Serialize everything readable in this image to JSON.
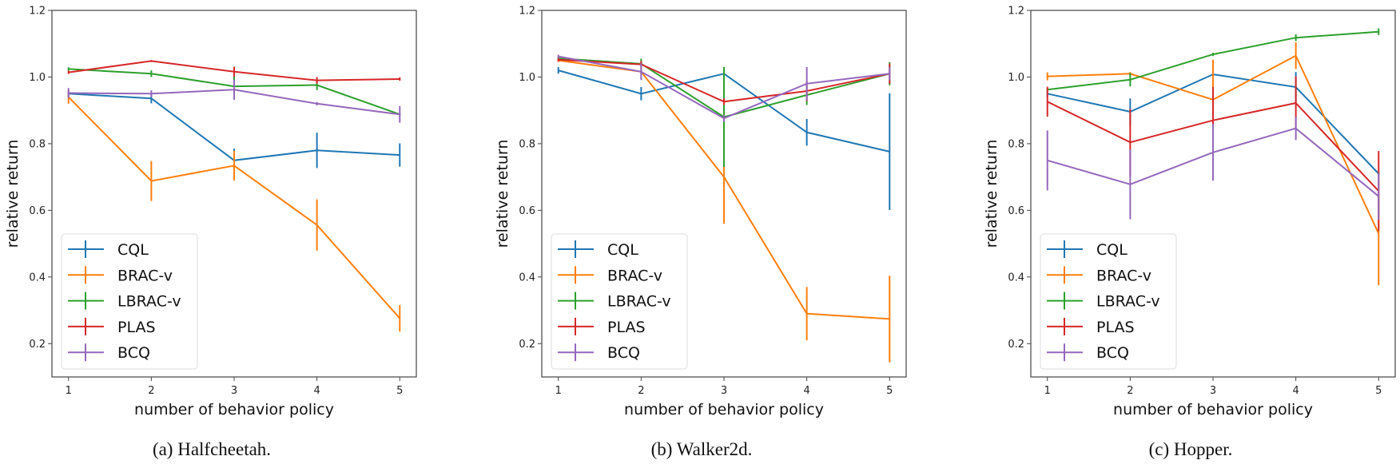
{
  "chart_data": [
    {
      "type": "line",
      "caption": "(a) Halfcheetah.",
      "xlabel": "number of behavior policy",
      "ylabel": "relative return",
      "x": [
        1,
        2,
        3,
        4,
        5
      ],
      "xlim": [
        0.8,
        5.2
      ],
      "ylim": [
        0.1,
        1.2
      ],
      "xticks": [
        "1",
        "2",
        "3",
        "4",
        "5"
      ],
      "yticks": [
        "0.2",
        "0.4",
        "0.6",
        "0.8",
        "1.0",
        "1.2"
      ],
      "grid": false,
      "legend_position": "lower-left",
      "series": [
        {
          "name": "CQL",
          "color": "#1f77b4",
          "values": [
            0.95,
            0.936,
            0.75,
            0.78,
            0.766
          ],
          "yerr": [
            0.01,
            0.015,
            0.035,
            0.053,
            0.035
          ]
        },
        {
          "name": "BRAC-v",
          "color": "#ff7f0e",
          "values": [
            0.94,
            0.688,
            0.734,
            0.556,
            0.276
          ],
          "yerr": [
            0.02,
            0.06,
            0.045,
            0.077,
            0.04
          ]
        },
        {
          "name": "LBRAC-v",
          "color": "#2ca02c",
          "values": [
            1.024,
            1.01,
            0.972,
            0.976,
            0.888
          ],
          "yerr": [
            0.005,
            0.01,
            0.04,
            0.015,
            0.005
          ]
        },
        {
          "name": "PLAS",
          "color": "#d62728",
          "values": [
            1.014,
            1.048,
            1.016,
            0.99,
            0.994
          ],
          "yerr": [
            0.005,
            0.003,
            0.015,
            0.01,
            0.005
          ]
        },
        {
          "name": "BCQ",
          "color": "#9467bd",
          "values": [
            0.952,
            0.95,
            0.962,
            0.92,
            0.888
          ],
          "yerr": [
            0.015,
            0.01,
            0.03,
            0.005,
            0.025
          ]
        }
      ]
    },
    {
      "type": "line",
      "caption": "(b) Walker2d.",
      "xlabel": "number of behavior policy",
      "ylabel": "relative return",
      "x": [
        1,
        2,
        3,
        4,
        5
      ],
      "xlim": [
        0.8,
        5.2
      ],
      "ylim": [
        0.1,
        1.2
      ],
      "xticks": [
        "1",
        "2",
        "3",
        "4",
        "5"
      ],
      "yticks": [
        "0.2",
        "0.4",
        "0.6",
        "0.8",
        "1.0",
        "1.2"
      ],
      "grid": false,
      "legend_position": "lower-left",
      "series": [
        {
          "name": "CQL",
          "color": "#1f77b4",
          "values": [
            1.02,
            0.95,
            1.01,
            0.834,
            0.776
          ],
          "yerr": [
            0.01,
            0.02,
            0.02,
            0.04,
            0.175
          ]
        },
        {
          "name": "BRAC-v",
          "color": "#ff7f0e",
          "values": [
            1.05,
            1.016,
            0.7,
            0.29,
            0.274
          ],
          "yerr": [
            0.005,
            0.01,
            0.14,
            0.08,
            0.13
          ]
        },
        {
          "name": "LBRAC-v",
          "color": "#2ca02c",
          "values": [
            1.056,
            1.04,
            0.88,
            0.946,
            1.01
          ],
          "yerr": [
            0.005,
            0.015,
            0.15,
            0.03,
            0.035
          ]
        },
        {
          "name": "PLAS",
          "color": "#d62728",
          "values": [
            1.052,
            1.038,
            0.926,
            0.958,
            1.01
          ],
          "yerr": [
            0.005,
            0.01,
            0.01,
            0.03,
            0.03
          ]
        },
        {
          "name": "BCQ",
          "color": "#9467bd",
          "values": [
            1.062,
            1.016,
            0.876,
            0.98,
            1.01
          ],
          "yerr": [
            0.005,
            0.025,
            0.01,
            0.05,
            0.02
          ]
        }
      ]
    },
    {
      "type": "line",
      "caption": "(c) Hopper.",
      "xlabel": "number of behavior policy",
      "ylabel": "relative return",
      "x": [
        1,
        2,
        3,
        4,
        5
      ],
      "xlim": [
        0.8,
        5.2
      ],
      "ylim": [
        0.1,
        1.2
      ],
      "xticks": [
        "1",
        "2",
        "3",
        "4",
        "5"
      ],
      "yticks": [
        "0.2",
        "0.4",
        "0.6",
        "0.8",
        "1.0",
        "1.2"
      ],
      "grid": false,
      "legend_position": "lower-left",
      "series": [
        {
          "name": "CQL",
          "color": "#1f77b4",
          "values": [
            0.95,
            0.896,
            1.008,
            0.97,
            0.71
          ],
          "yerr": [
            0.01,
            0.04,
            0.005,
            0.045,
            0.005
          ]
        },
        {
          "name": "BRAC-v",
          "color": "#ff7f0e",
          "values": [
            1.002,
            1.01,
            0.932,
            1.064,
            0.53
          ],
          "yerr": [
            0.012,
            0.005,
            0.12,
            0.04,
            0.155
          ]
        },
        {
          "name": "LBRAC-v",
          "color": "#2ca02c",
          "values": [
            0.962,
            0.992,
            1.068,
            1.118,
            1.136
          ],
          "yerr": [
            0.005,
            0.02,
            0.005,
            0.01,
            0.01
          ]
        },
        {
          "name": "PLAS",
          "color": "#d62728",
          "values": [
            0.926,
            0.804,
            0.87,
            0.922,
            0.658
          ],
          "yerr": [
            0.045,
            0.1,
            0.1,
            0.08,
            0.12
          ]
        },
        {
          "name": "BCQ",
          "color": "#9467bd",
          "values": [
            0.75,
            0.678,
            0.774,
            0.846,
            0.642
          ],
          "yerr": [
            0.09,
            0.105,
            0.085,
            0.035,
            0.07
          ]
        }
      ]
    }
  ]
}
